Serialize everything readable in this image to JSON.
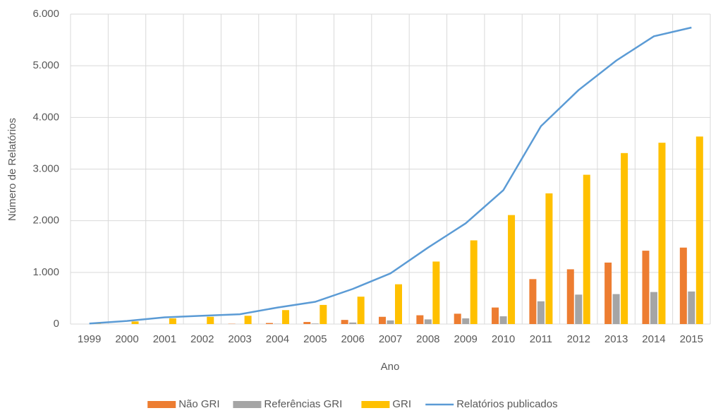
{
  "chart_data": {
    "type": "bar",
    "x_label": "Ano",
    "y_label": "Número de Relatórios",
    "categories": [
      "1999",
      "2000",
      "2001",
      "2002",
      "2003",
      "2004",
      "2005",
      "2006",
      "2007",
      "2008",
      "2009",
      "2010",
      "2011",
      "2012",
      "2013",
      "2014",
      "2015"
    ],
    "series": [
      {
        "name": "Não GRI",
        "type": "bar",
        "color": "#ed7d31",
        "values": [
          0,
          0,
          0,
          0,
          5,
          20,
          40,
          80,
          140,
          170,
          200,
          320,
          870,
          1060,
          1190,
          1420,
          1480
        ]
      },
      {
        "name": "Referências GRI",
        "type": "bar",
        "color": "#a5a5a5",
        "values": [
          0,
          0,
          0,
          0,
          0,
          5,
          10,
          30,
          70,
          90,
          110,
          150,
          440,
          570,
          580,
          620,
          630
        ]
      },
      {
        "name": "GRI",
        "type": "bar",
        "color": "#ffc000",
        "values": [
          5,
          50,
          110,
          140,
          160,
          270,
          370,
          530,
          770,
          1210,
          1620,
          2110,
          2530,
          2890,
          3310,
          3510,
          3630
        ]
      },
      {
        "name": "Relatórios publicados",
        "type": "line",
        "color": "#5b9bd5",
        "values": [
          10,
          60,
          130,
          160,
          190,
          320,
          430,
          680,
          980,
          1480,
          1950,
          2590,
          3830,
          4530,
          5100,
          5570,
          5740
        ]
      }
    ],
    "ylim": [
      0,
      6000
    ],
    "yticks": [
      0,
      {
        "value": 1000,
        "label": "1.000"
      },
      {
        "value": 2000,
        "label": "2.000"
      },
      {
        "value": 3000,
        "label": "3.000"
      },
      {
        "value": 4000,
        "label": "4.000"
      },
      {
        "value": 5000,
        "label": "5.000"
      },
      {
        "value": 6000,
        "label": "6.000"
      }
    ],
    "grid": true,
    "legend": "bottom"
  }
}
